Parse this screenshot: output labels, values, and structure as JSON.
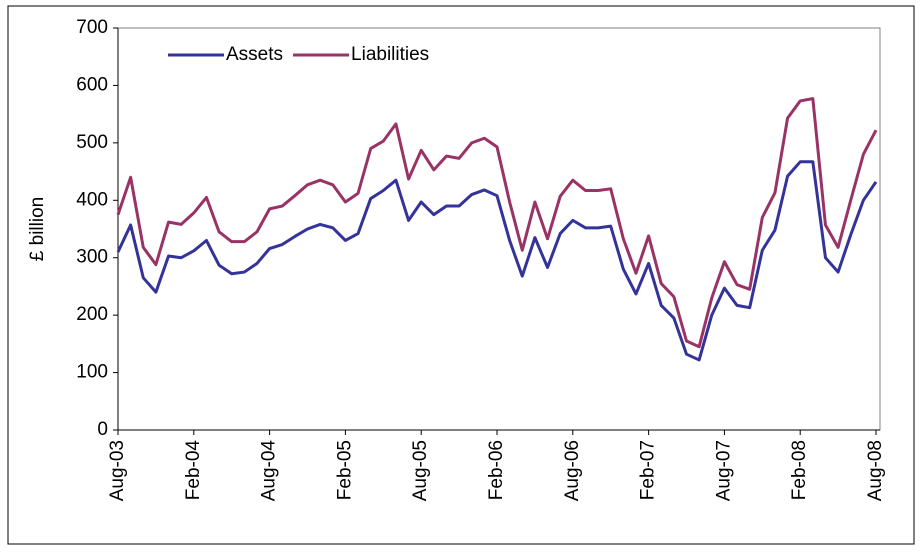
{
  "chart_data": {
    "type": "line",
    "y_label": "£ billion",
    "categories": [
      "Aug-03",
      null,
      null,
      null,
      null,
      null,
      "Feb-04",
      null,
      null,
      null,
      null,
      null,
      "Aug-04",
      null,
      null,
      null,
      null,
      null,
      "Feb-05",
      null,
      null,
      null,
      null,
      null,
      "Aug-05",
      null,
      null,
      null,
      null,
      null,
      "Feb-06",
      null,
      null,
      null,
      null,
      null,
      "Aug-06",
      null,
      null,
      null,
      null,
      null,
      "Feb-07",
      null,
      null,
      null,
      null,
      null,
      "Aug-07",
      null,
      null,
      null,
      null,
      null,
      "Feb-08",
      null,
      null,
      null,
      null,
      null,
      "Aug-08"
    ],
    "series": [
      {
        "name": "Assets",
        "color": "#333399",
        "values": [
          310,
          357,
          265,
          240,
          303,
          300,
          312,
          330,
          287,
          272,
          275,
          290,
          316,
          323,
          337,
          350,
          358,
          352,
          330,
          342,
          403,
          417,
          435,
          365,
          397,
          375,
          390,
          390,
          410,
          418,
          408,
          330,
          268,
          335,
          283,
          342,
          365,
          352,
          352,
          355,
          280,
          237,
          290,
          217,
          195,
          132,
          122,
          200,
          247,
          217,
          213,
          313,
          348,
          442,
          467,
          467,
          300,
          275,
          340,
          400,
          432
        ]
      },
      {
        "name": "Liabilities",
        "color": "#993366",
        "values": [
          375,
          440,
          318,
          288,
          362,
          358,
          378,
          405,
          345,
          328,
          328,
          345,
          385,
          390,
          408,
          427,
          435,
          427,
          397,
          412,
          490,
          503,
          533,
          437,
          487,
          453,
          477,
          473,
          500,
          508,
          493,
          397,
          313,
          397,
          333,
          407,
          435,
          417,
          417,
          420,
          333,
          273,
          338,
          255,
          232,
          155,
          145,
          230,
          293,
          253,
          245,
          370,
          413,
          543,
          573,
          577,
          357,
          318,
          400,
          480,
          522
        ]
      }
    ],
    "ylim": [
      0,
      700
    ],
    "yticks": [
      0,
      100,
      200,
      300,
      400,
      500,
      600,
      700
    ],
    "legend": "upper left",
    "grid": false
  }
}
